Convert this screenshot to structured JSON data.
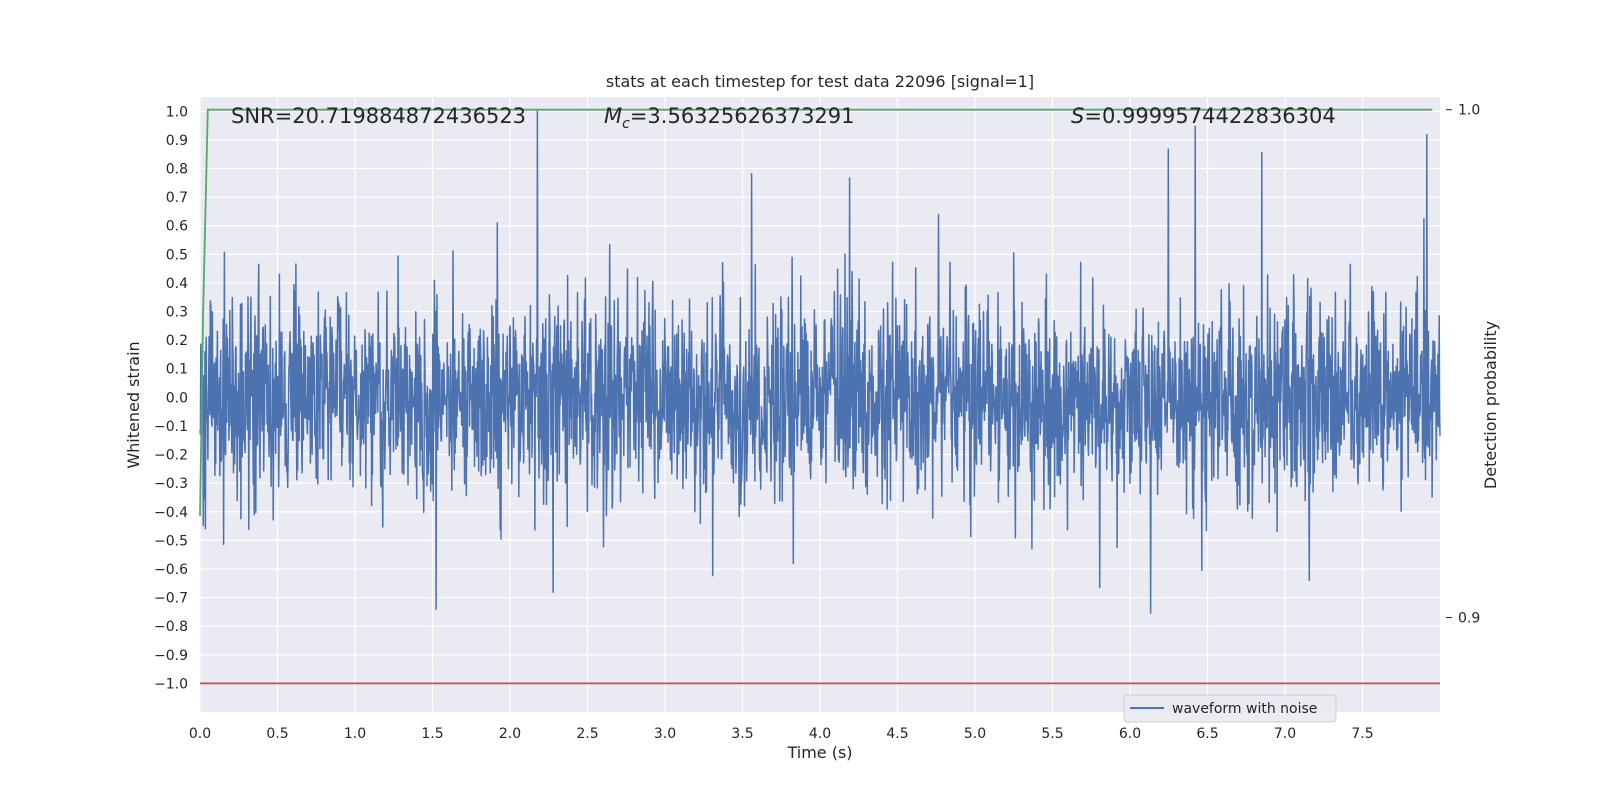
{
  "chart_data": {
    "type": "line",
    "title": "stats at each timestep for test data 22096 [signal=1]",
    "xlabel": "Time (s)",
    "ylabel": "Whitened strain",
    "y2label": "Detection probability",
    "xlim": [
      0.0,
      8.0
    ],
    "ylim": [
      -1.1,
      1.05
    ],
    "y2lim": [
      0.8814,
      1.0025
    ],
    "xticks": [
      0.0,
      0.5,
      1.0,
      1.5,
      2.0,
      2.5,
      3.0,
      3.5,
      4.0,
      4.5,
      5.0,
      5.5,
      6.0,
      6.5,
      7.0,
      7.5
    ],
    "xtick_labels": [
      "0.0",
      "0.5",
      "1.0",
      "1.5",
      "2.0",
      "2.5",
      "3.0",
      "3.5",
      "4.0",
      "4.5",
      "5.0",
      "5.5",
      "6.0",
      "6.5",
      "7.0",
      "7.5"
    ],
    "yticks": [
      1.0,
      0.9,
      0.8,
      0.7,
      0.6,
      0.5,
      0.4,
      0.3,
      0.2,
      0.1,
      0.0,
      -0.1,
      -0.2,
      -0.3,
      -0.4,
      -0.5,
      -0.6,
      -0.7,
      -0.8,
      -0.9,
      -1.0
    ],
    "ytick_labels": [
      "1.0",
      "0.9",
      "0.8",
      "0.7",
      "0.6",
      "0.5",
      "0.4",
      "0.3",
      "0.2",
      "0.1",
      "0.0",
      "−0.1",
      "−0.2",
      "−0.3",
      "−0.4",
      "−0.5",
      "−0.6",
      "−0.7",
      "−0.8",
      "−0.9",
      "−1.0"
    ],
    "y2ticks": [
      1.0,
      0.9
    ],
    "y2tick_labels": [
      "1.0",
      "0.9"
    ],
    "grid": true,
    "legend_position": "bottom-right",
    "series": [
      {
        "name": "waveform with noise",
        "axis": "left",
        "color": "#4c72b0",
        "kind": "noise",
        "x_range": [
          0.0,
          8.0
        ],
        "typical_amplitude": 0.45,
        "extreme_min": -1.0,
        "extreme_max": 1.0
      },
      {
        "axis": "right",
        "color": "#55a868",
        "x": [
          0.0,
          0.02,
          0.05,
          0.06,
          7.95
        ],
        "y": [
          0.92,
          0.96,
          1.0,
          1.0,
          1.0
        ]
      },
      {
        "axis": "left",
        "color": "#c44e52",
        "x": [
          0.0,
          8.0
        ],
        "y": [
          -1.0,
          -1.0
        ]
      }
    ],
    "annotations": [
      {
        "id": "snr",
        "text": "SNR=20.719884872436523"
      },
      {
        "id": "mc",
        "symbol": "M",
        "subscript": "c",
        "text": "=3.56325626373291"
      },
      {
        "id": "s",
        "symbol": "S",
        "text": "=0.9999574422836304"
      }
    ],
    "colors": {
      "plot_background": "#eaeaf2",
      "grid": "#ffffff",
      "text": "#262626"
    }
  }
}
